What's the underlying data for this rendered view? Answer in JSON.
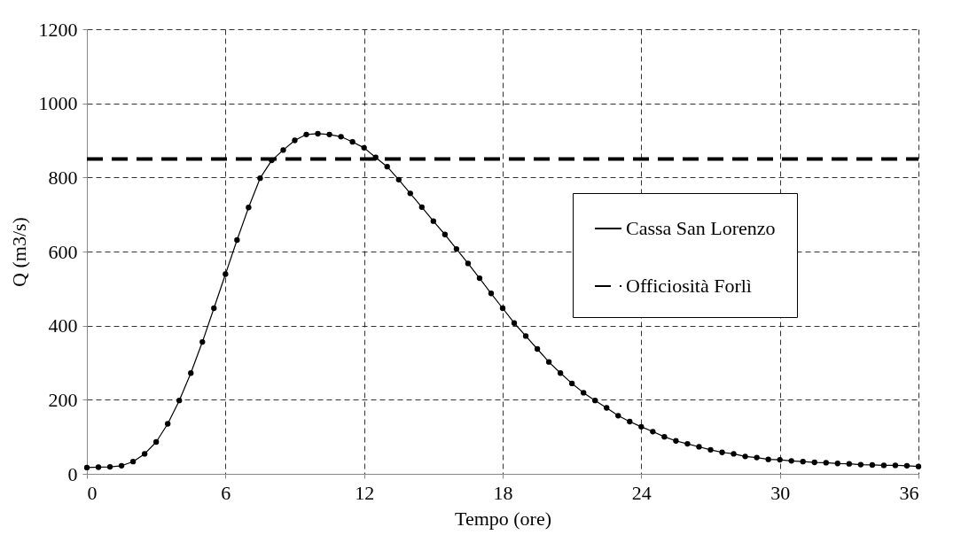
{
  "chart_data": {
    "type": "line",
    "xlabel": "Tempo (ore)",
    "ylabel": "Q (m3/s)",
    "xlim": [
      0,
      36
    ],
    "xticks": [
      0,
      6,
      12,
      18,
      24,
      30,
      36
    ],
    "ylim": [
      0,
      1200
    ],
    "yticks": [
      0,
      200,
      400,
      600,
      800,
      1000,
      1200
    ],
    "grid": true,
    "legend": "right",
    "series": [
      {
        "name": "Cassa San Lorenzo",
        "color": "#000000",
        "marker": "circle",
        "line_style": "solid",
        "x": [
          0,
          0.5,
          1,
          1.5,
          2,
          2.5,
          3,
          3.5,
          4,
          4.5,
          5,
          5.5,
          6,
          6.5,
          7,
          7.5,
          8,
          8.5,
          9,
          9.5,
          10,
          10.5,
          11,
          11.5,
          12,
          12.5,
          13,
          13.5,
          14,
          14.5,
          15,
          15.5,
          16,
          16.5,
          17,
          17.5,
          18,
          18.5,
          19,
          19.5,
          20,
          20.5,
          21,
          21.5,
          22,
          22.5,
          23,
          23.5,
          24,
          24.5,
          25,
          25.5,
          26,
          26.5,
          27,
          27.5,
          28,
          28.5,
          29,
          29.5,
          30,
          30.5,
          31,
          31.5,
          32,
          32.5,
          33,
          33.5,
          34,
          34.5,
          35,
          35.5,
          36
        ],
        "values": [
          17,
          18,
          19,
          22,
          33,
          54,
          86,
          135,
          198,
          272,
          356,
          447,
          539,
          631,
          719,
          798,
          846,
          874,
          900,
          916,
          918,
          916,
          910,
          896,
          880,
          854,
          829,
          794,
          757,
          720,
          682,
          646,
          607,
          568,
          528,
          487,
          447,
          407,
          372,
          337,
          302,
          272,
          244,
          219,
          198,
          178,
          157,
          141,
          127,
          114,
          100,
          89,
          81,
          73,
          65,
          58,
          54,
          47,
          44,
          39,
          38,
          35,
          33,
          31,
          30,
          28,
          27,
          25,
          24,
          23,
          23,
          22,
          20
        ]
      },
      {
        "name": "Officiosità Forlì",
        "color": "#000000",
        "marker": "none",
        "line_style": "dashed",
        "x": [
          0,
          36
        ],
        "values": [
          850,
          850
        ]
      }
    ]
  }
}
